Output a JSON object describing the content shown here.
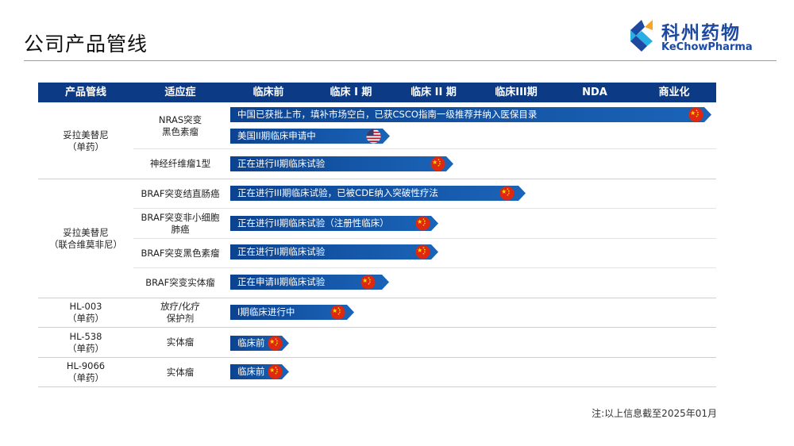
{
  "page": {
    "title": "公司产品管线",
    "note": "注:以上信息截至2025年01月"
  },
  "logo": {
    "name_cn": "科州药物",
    "name_en": "KeChowPharma",
    "icon": "kechow-logo-icon"
  },
  "colors": {
    "header_bg": "#0d3a84",
    "bar_start": "#0c4391",
    "bar_end": "#1b64b8",
    "china_flag": "#de2910",
    "logo_blue": "#1d4aa0"
  },
  "table": {
    "headers": [
      "产品管线",
      "适应症",
      "临床前",
      "临床 I 期",
      "临床 II 期",
      "临床III期",
      "NDA",
      "商业化"
    ],
    "groups": [
      {
        "product": "妥拉美替尼\n（单药）"
      },
      {
        "product": "妥拉美替尼\n（联合维莫非尼）"
      },
      {
        "product": "HL-003\n（单药）"
      },
      {
        "product": "HL-538\n（单药）"
      },
      {
        "product": "HL-9066\n（单药）"
      }
    ],
    "indications": [
      "NRAS突变\n黑色素瘤",
      "神经纤维瘤1型",
      "BRAF突变结直肠癌",
      "BRAF突变非小细胞\n肺癌",
      "BRAF突变黑色素瘤",
      "BRAF突变实体瘤",
      "放疗/化疗\n保护剂",
      "实体瘤",
      "实体瘤"
    ],
    "bars": [
      {
        "label": "中国已获批上市，填补市场空白，已获CSCO指南一级推荐并纳入医保目录",
        "flag": "china-flag-icon",
        "stage": "商业化"
      },
      {
        "label": "美国II期临床申请中",
        "flag": "us-flag-icon",
        "stage": "临床 II 期"
      },
      {
        "label": "正在进行II期临床试验",
        "flag": "china-flag-icon",
        "stage": "临床 II 期"
      },
      {
        "label": "正在进行III期临床试验，已被CDE纳入突破性疗法",
        "flag": "china-flag-icon",
        "stage": "临床III期"
      },
      {
        "label": "正在进行II期临床试验（注册性临床）",
        "flag": "china-flag-icon",
        "stage": "临床 II 期"
      },
      {
        "label": "正在进行II期临床试验",
        "flag": "china-flag-icon",
        "stage": "临床 II 期"
      },
      {
        "label": "正在申请II期临床试验",
        "flag": "china-flag-icon",
        "stage": "临床 II 期"
      },
      {
        "label": "I期临床进行中",
        "flag": "china-flag-icon",
        "stage": "临床 I 期"
      },
      {
        "label": "临床前",
        "flag": "china-flag-icon",
        "stage": "临床前"
      },
      {
        "label": "临床前",
        "flag": "china-flag-icon",
        "stage": "临床前"
      }
    ]
  }
}
